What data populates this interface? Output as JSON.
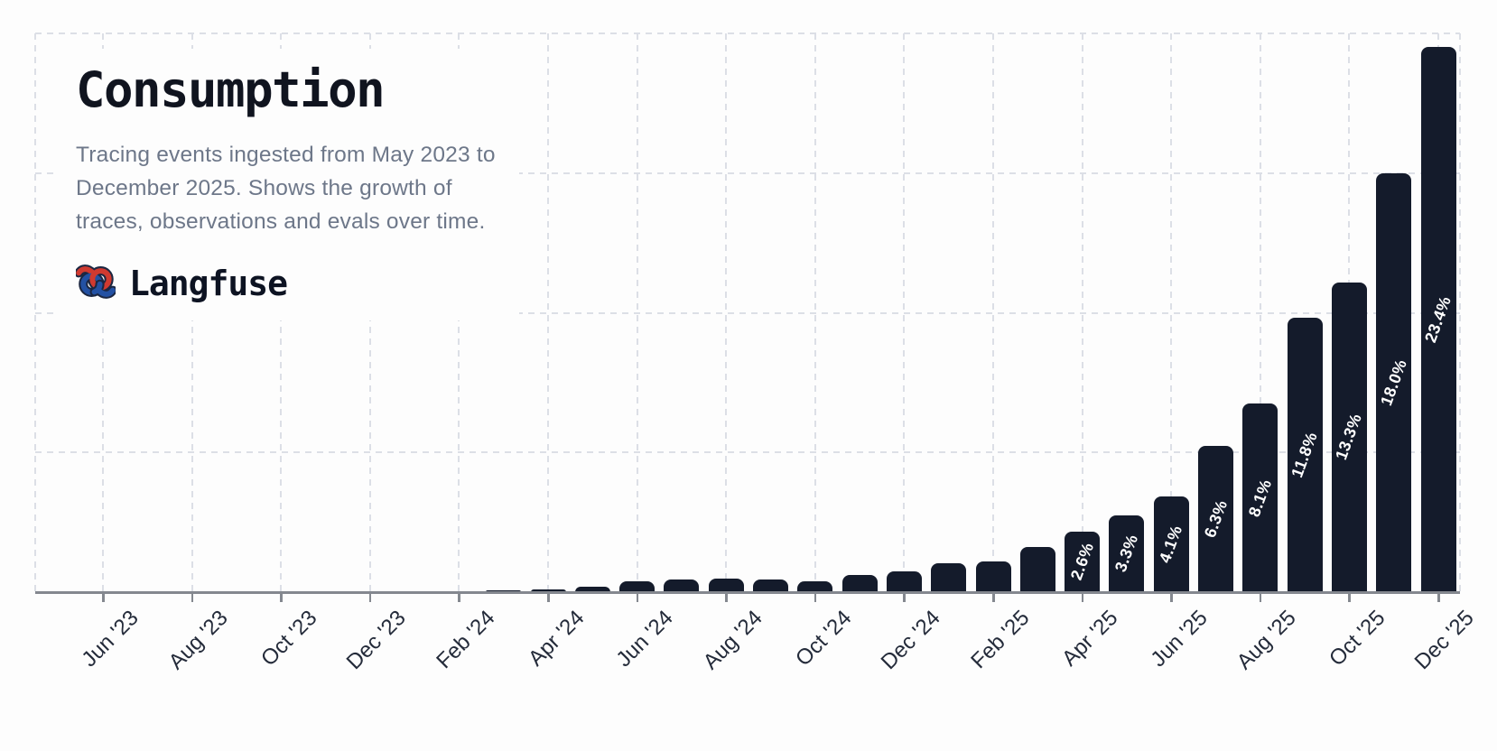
{
  "header": {
    "title": "Consumption",
    "subtitle_lines": [
      "Tracing events ingested from May 2023 to",
      "December 2025. Shows the growth of",
      "traces, observations and evals over time."
    ],
    "brand": {
      "name": "Langfuse",
      "logo": "knot-icon"
    }
  },
  "chart_data": {
    "type": "bar",
    "title": "Consumption",
    "xlabel": "",
    "ylabel": "",
    "ylim": [
      0,
      24
    ],
    "grid": {
      "h_step": 6,
      "style": "dashed",
      "vertical_at_ticks": true
    },
    "legend": "none",
    "categories": [
      "May '23",
      "Jun '23",
      "Jul '23",
      "Aug '23",
      "Sep '23",
      "Oct '23",
      "Nov '23",
      "Dec '23",
      "Jan '24",
      "Feb '24",
      "Mar '24",
      "Apr '24",
      "May '24",
      "Jun '24",
      "Jul '24",
      "Aug '24",
      "Sep '24",
      "Oct '24",
      "Nov '24",
      "Dec '24",
      "Jan '25",
      "Feb '25",
      "Mar '25",
      "Apr '25",
      "May '25",
      "Jun '25",
      "Jul '25",
      "Aug '25",
      "Sep '25",
      "Oct '25",
      "Nov '25",
      "Dec '25"
    ],
    "values": [
      0.01,
      0.01,
      0.01,
      0.02,
      0.02,
      0.02,
      0.03,
      0.03,
      0.03,
      0.04,
      0.06,
      0.1,
      0.23,
      0.46,
      0.56,
      0.58,
      0.54,
      0.45,
      0.72,
      0.88,
      1.25,
      1.3,
      1.95,
      2.6,
      3.3,
      4.1,
      6.3,
      8.1,
      11.8,
      13.3,
      18.0,
      23.4
    ],
    "values_unit": "percent_of_total",
    "bar_labels": [
      null,
      null,
      null,
      null,
      null,
      null,
      null,
      null,
      null,
      null,
      null,
      null,
      null,
      null,
      null,
      null,
      null,
      null,
      null,
      null,
      null,
      null,
      null,
      "2.6%",
      "3.3%",
      "4.1%",
      "6.3%",
      "8.1%",
      "11.8%",
      "13.3%",
      "18.0%",
      "23.4%"
    ],
    "x_tick_labels": [
      "Jun '23",
      "Aug '23",
      "Oct '23",
      "Dec '23",
      "Feb '24",
      "Apr '24",
      "Jun '24",
      "Aug '24",
      "Oct '24",
      "Dec '24",
      "Feb '25",
      "Apr '25",
      "Jun '25",
      "Aug '25",
      "Oct '25",
      "Dec '25"
    ],
    "colors": {
      "bar": "#141b2b",
      "bar_label_text": "#ffffff",
      "background": "#fdfdfd",
      "gridline": "#dcdfe6",
      "axis_line": "#84888f",
      "tick_label": "#242b3a",
      "title": "#10141f",
      "subtitle": "#6d7789",
      "logo_red": "#d03a30",
      "logo_blue": "#2351a3"
    }
  }
}
